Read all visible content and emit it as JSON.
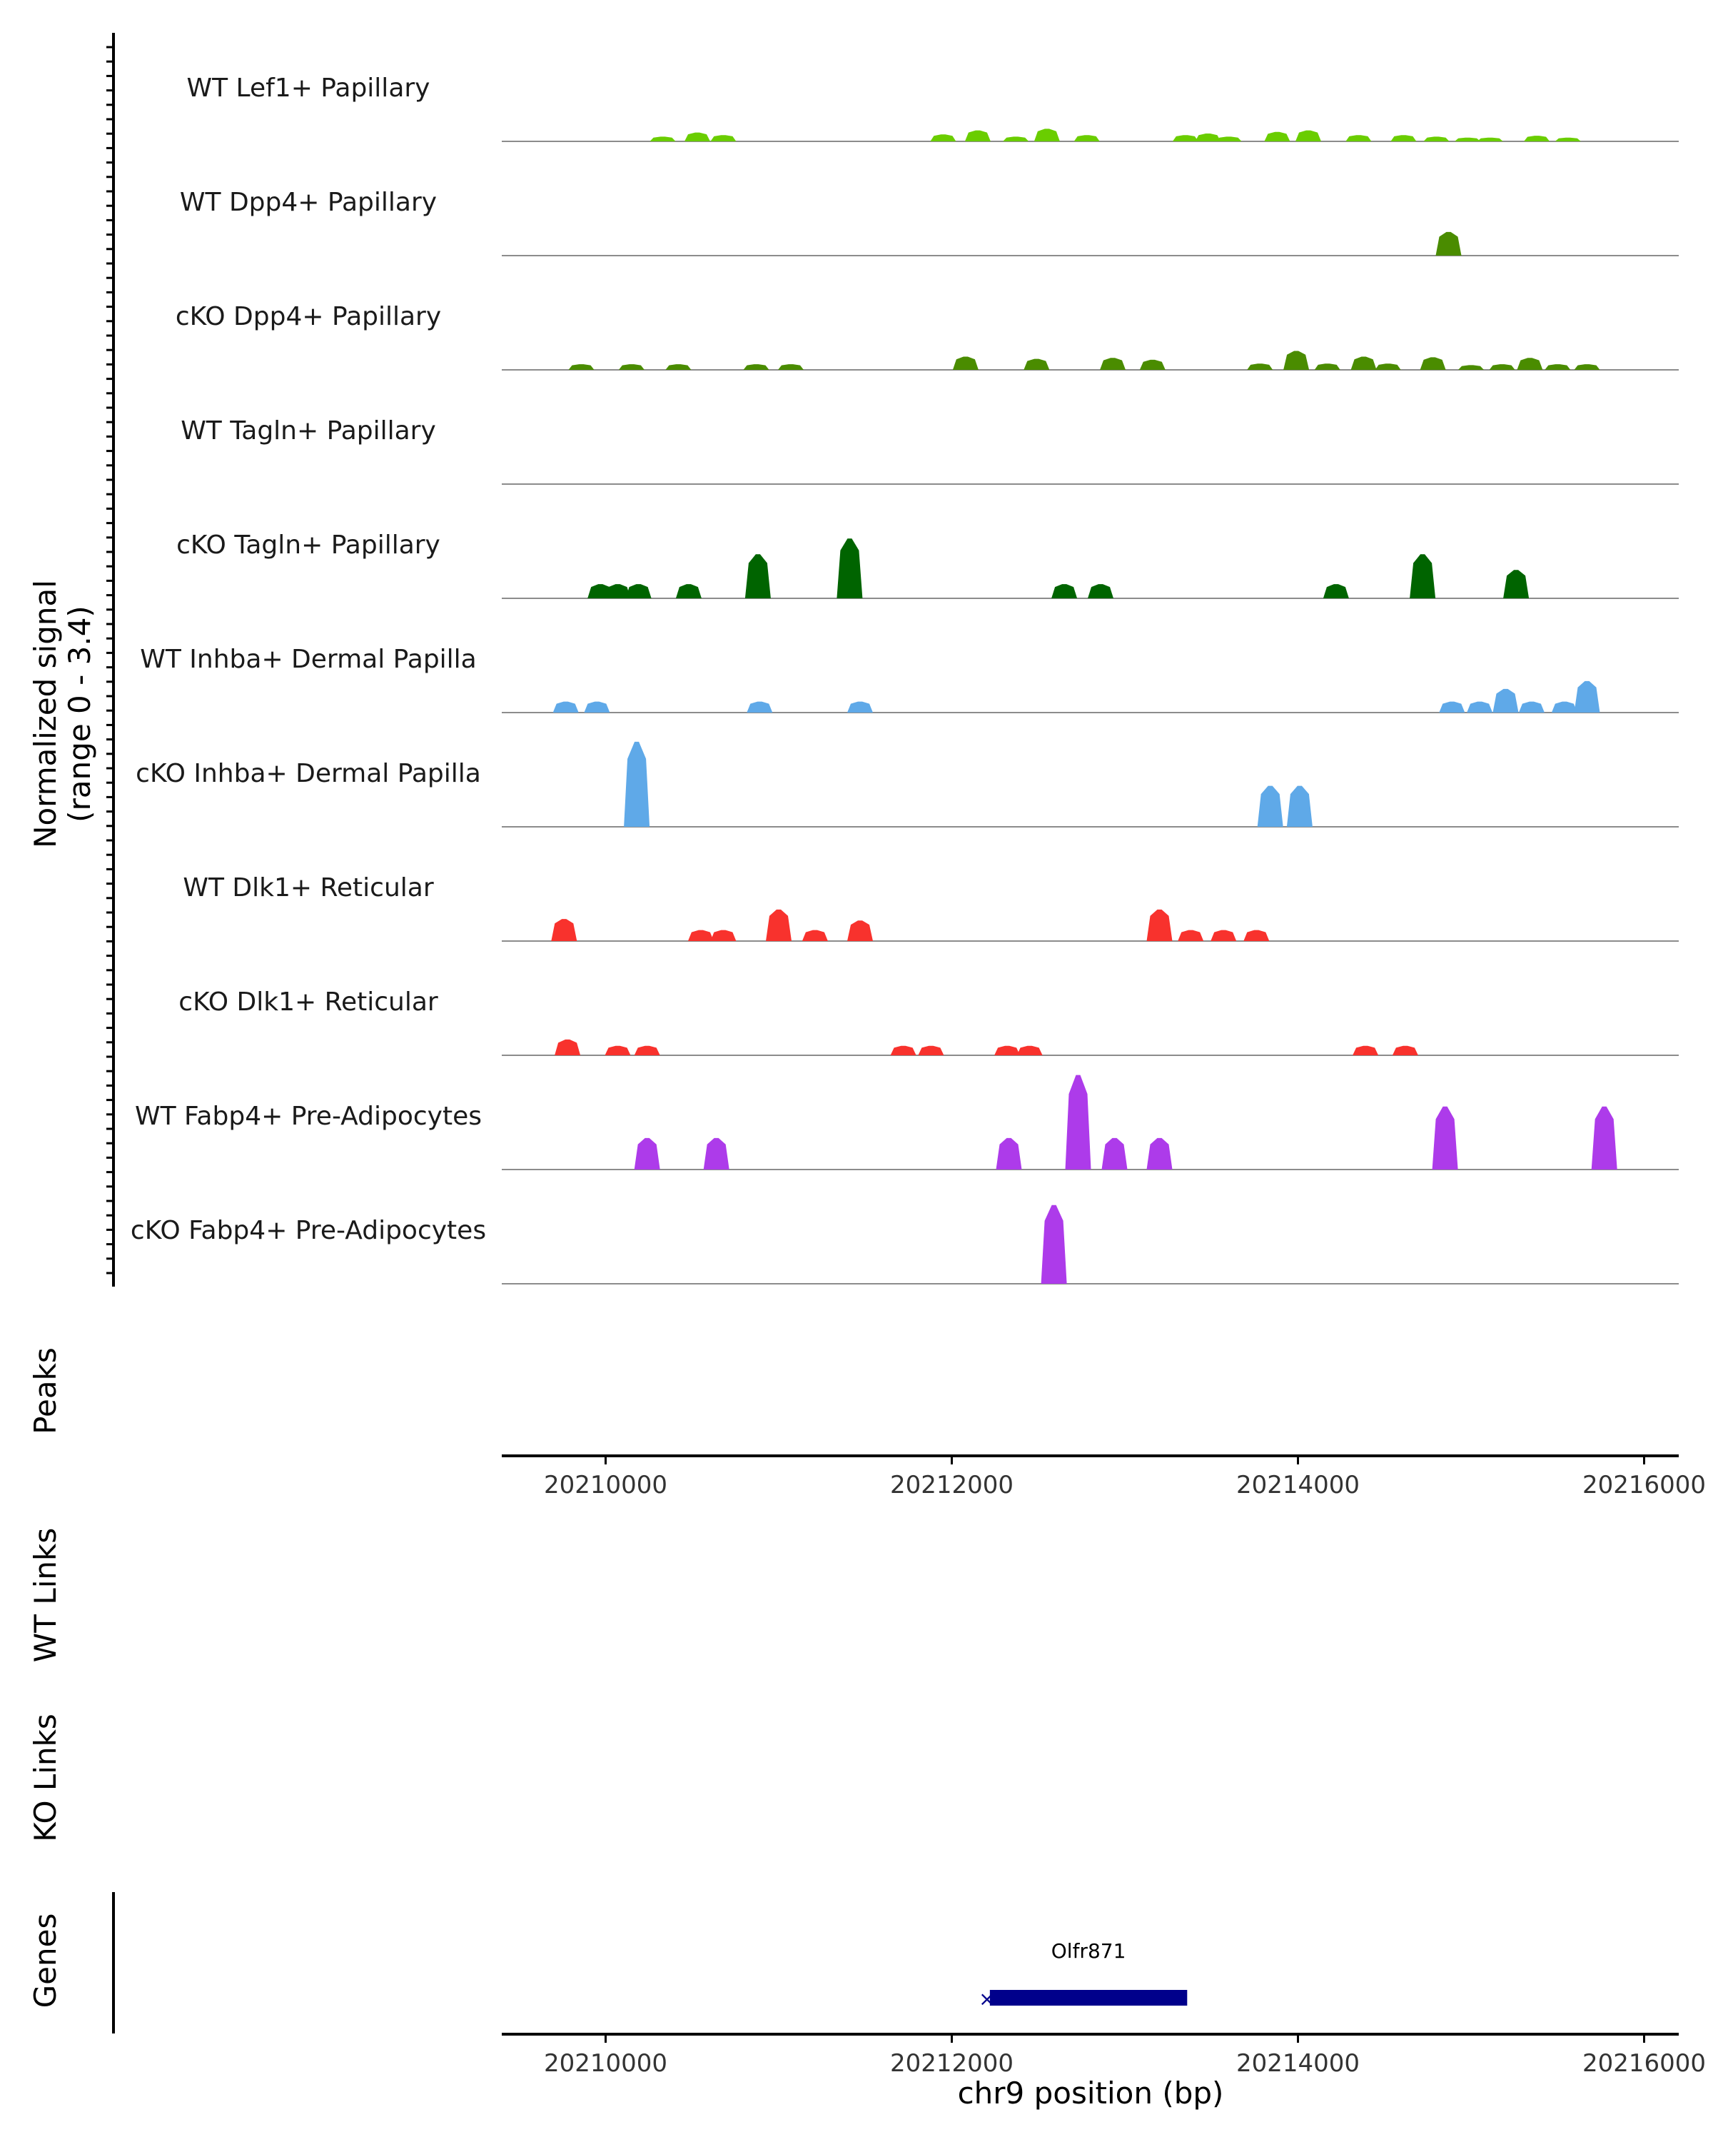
{
  "chart_data": {
    "type": "area",
    "title": "",
    "signal_axis_label_line1": "Normalized signal",
    "signal_axis_label_line2": "(range 0 - 3.4)",
    "signal_range": [
      0,
      3.4
    ],
    "xlabel": "chr9 position (bp)",
    "xlim": [
      20209400,
      20216200
    ],
    "x_ticks": [
      20210000,
      20212000,
      20214000,
      20216000
    ],
    "x_tick_labels": [
      "20210000",
      "20212000",
      "20214000",
      "20216000"
    ],
    "track_labels": {
      "peaks": "Peaks",
      "wt_links": "WT Links",
      "ko_links": "KO Links",
      "genes": "Genes"
    },
    "genes": [
      {
        "name": "Olfr871",
        "start": 20212220,
        "end": 20213360,
        "strand": "-",
        "color": "#00008b"
      }
    ],
    "series": [
      {
        "name": "WT Lef1+ Papillary",
        "color": "#6ACD00",
        "peaks": [
          [
            20210330,
            0.15
          ],
          [
            20210530,
            0.28
          ],
          [
            20210680,
            0.2
          ],
          [
            20211950,
            0.22
          ],
          [
            20212150,
            0.35
          ],
          [
            20212370,
            0.15
          ],
          [
            20212550,
            0.4
          ],
          [
            20212780,
            0.2
          ],
          [
            20213350,
            0.2
          ],
          [
            20213480,
            0.25
          ],
          [
            20213600,
            0.15
          ],
          [
            20213880,
            0.3
          ],
          [
            20214060,
            0.35
          ],
          [
            20214350,
            0.2
          ],
          [
            20214610,
            0.2
          ],
          [
            20214800,
            0.15
          ],
          [
            20214980,
            0.12
          ],
          [
            20215110,
            0.12
          ],
          [
            20215380,
            0.18
          ],
          [
            20215560,
            0.12
          ]
        ]
      },
      {
        "name": "WT Dpp4+ Papillary",
        "color": "#4A8C00",
        "peaks": [
          [
            20214870,
            0.75
          ]
        ]
      },
      {
        "name": "cKO Dpp4+ Papillary",
        "color": "#4A8C00",
        "peaks": [
          [
            20209860,
            0.18
          ],
          [
            20210150,
            0.18
          ],
          [
            20210420,
            0.18
          ],
          [
            20210870,
            0.18
          ],
          [
            20211070,
            0.18
          ],
          [
            20212080,
            0.42
          ],
          [
            20212490,
            0.35
          ],
          [
            20212930,
            0.38
          ],
          [
            20213160,
            0.32
          ],
          [
            20213780,
            0.2
          ],
          [
            20213990,
            0.6
          ],
          [
            20214170,
            0.2
          ],
          [
            20214380,
            0.42
          ],
          [
            20214520,
            0.2
          ],
          [
            20214780,
            0.4
          ],
          [
            20215000,
            0.15
          ],
          [
            20215180,
            0.18
          ],
          [
            20215340,
            0.38
          ],
          [
            20215500,
            0.18
          ],
          [
            20215670,
            0.18
          ]
        ]
      },
      {
        "name": "WT Tagln+ Papillary",
        "color": "#006400",
        "peaks": []
      },
      {
        "name": "cKO Tagln+ Papillary",
        "color": "#006400",
        "peaks": [
          [
            20209970,
            0.45
          ],
          [
            20210070,
            0.45
          ],
          [
            20210190,
            0.45
          ],
          [
            20210480,
            0.45
          ],
          [
            20210880,
            1.4
          ],
          [
            20211410,
            1.9
          ],
          [
            20212650,
            0.45
          ],
          [
            20212860,
            0.45
          ],
          [
            20214220,
            0.45
          ],
          [
            20214720,
            1.4
          ],
          [
            20215260,
            0.9
          ]
        ]
      },
      {
        "name": "WT Inhba+ Dermal Papilla",
        "color": "#5FA9E8",
        "peaks": [
          [
            20209770,
            0.35
          ],
          [
            20209950,
            0.35
          ],
          [
            20210890,
            0.35
          ],
          [
            20211470,
            0.35
          ],
          [
            20214890,
            0.35
          ],
          [
            20215050,
            0.35
          ],
          [
            20215200,
            0.75
          ],
          [
            20215350,
            0.35
          ],
          [
            20215540,
            0.35
          ],
          [
            20215670,
            1.0
          ]
        ]
      },
      {
        "name": "cKO Inhba+ Dermal Papilla",
        "color": "#5FA9E8",
        "peaks": [
          [
            20210180,
            2.7
          ],
          [
            20213840,
            1.3
          ],
          [
            20214010,
            1.3
          ]
        ]
      },
      {
        "name": "WT Dlk1+ Reticular",
        "color": "#F8322D",
        "peaks": [
          [
            20209760,
            0.7
          ],
          [
            20210550,
            0.35
          ],
          [
            20210680,
            0.35
          ],
          [
            20211000,
            1.0
          ],
          [
            20211210,
            0.35
          ],
          [
            20211470,
            0.65
          ],
          [
            20213200,
            1.0
          ],
          [
            20213380,
            0.35
          ],
          [
            20213570,
            0.35
          ],
          [
            20213760,
            0.35
          ]
        ]
      },
      {
        "name": "cKO Dlk1+ Reticular",
        "color": "#F8322D",
        "peaks": [
          [
            20209780,
            0.5
          ],
          [
            20210070,
            0.3
          ],
          [
            20210240,
            0.3
          ],
          [
            20211720,
            0.3
          ],
          [
            20211880,
            0.3
          ],
          [
            20212320,
            0.3
          ],
          [
            20212450,
            0.3
          ],
          [
            20214390,
            0.3
          ],
          [
            20214620,
            0.3
          ]
        ]
      },
      {
        "name": "WT Fabp4+ Pre-Adipocytes",
        "color": "#AD3BEA",
        "peaks": [
          [
            20210240,
            1.0
          ],
          [
            20210640,
            1.0
          ],
          [
            20212330,
            1.0
          ],
          [
            20212730,
            3.0
          ],
          [
            20212940,
            1.0
          ],
          [
            20213200,
            1.0
          ],
          [
            20214850,
            2.0
          ],
          [
            20215770,
            2.0
          ]
        ]
      },
      {
        "name": "cKO Fabp4+ Pre-Adipocytes",
        "color": "#AD3BEA",
        "peaks": [
          [
            20212590,
            2.5
          ]
        ]
      }
    ]
  }
}
